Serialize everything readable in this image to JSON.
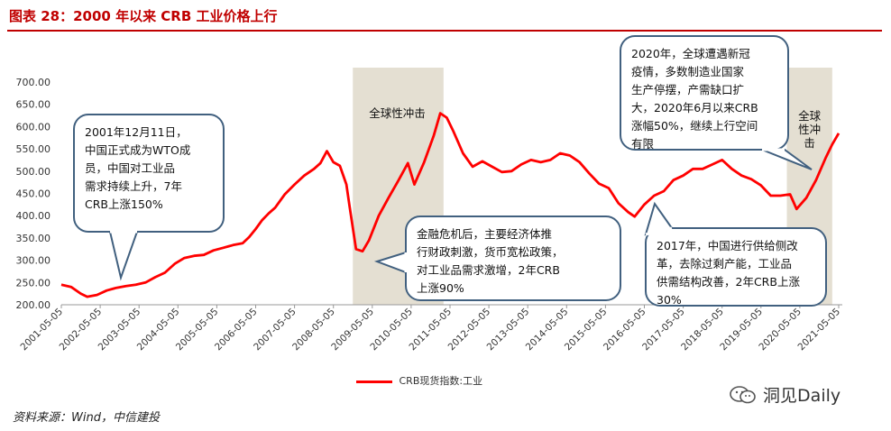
{
  "page": {
    "title": "图表 28：2000 年以来 CRB 工业价格上行",
    "source": "资料来源：Wind，中信建投",
    "brand": "洞见Daily"
  },
  "colors": {
    "title": "#c00000",
    "line": "#ff0000",
    "shade": "#e4dfd2",
    "bubble_border": "#41607f"
  },
  "chart_data": {
    "type": "line",
    "title": "",
    "xlabel": "",
    "ylabel": "",
    "ylim": [
      200,
      700
    ],
    "yticks": [
      "200.00",
      "250.00",
      "300.00",
      "350.00",
      "400.00",
      "450.00",
      "500.00",
      "550.00",
      "600.00",
      "650.00",
      "700.00"
    ],
    "xticks": [
      "2001-05-05",
      "2002-05-05",
      "2003-05-05",
      "2004-05-05",
      "2005-05-05",
      "2006-05-05",
      "2007-05-05",
      "2008-05-05",
      "2009-05-05",
      "2010-05-05",
      "2011-05-05",
      "2012-05-05",
      "2013-05-05",
      "2014-05-05",
      "2015-05-05",
      "2016-05-05",
      "2017-05-05",
      "2018-05-05",
      "2019-05-05",
      "2020-05-05",
      "2021-05-05"
    ],
    "grid": false,
    "legend": "bottom",
    "series": [
      {
        "name": "CRB现货指数:工业",
        "color": "#ff0000",
        "points": [
          [
            "2001-05",
            245
          ],
          [
            "2001-08",
            240
          ],
          [
            "2001-11",
            225
          ],
          [
            "2002-01",
            218
          ],
          [
            "2002-04",
            222
          ],
          [
            "2002-07",
            232
          ],
          [
            "2002-10",
            238
          ],
          [
            "2003-01",
            242
          ],
          [
            "2003-04",
            245
          ],
          [
            "2003-07",
            250
          ],
          [
            "2003-10",
            262
          ],
          [
            "2004-01",
            272
          ],
          [
            "2004-04",
            292
          ],
          [
            "2004-07",
            305
          ],
          [
            "2004-10",
            310
          ],
          [
            "2005-01",
            312
          ],
          [
            "2005-04",
            322
          ],
          [
            "2005-07",
            328
          ],
          [
            "2005-10",
            334
          ],
          [
            "2006-01",
            338
          ],
          [
            "2006-03",
            352
          ],
          [
            "2006-05",
            370
          ],
          [
            "2006-07",
            390
          ],
          [
            "2006-09",
            405
          ],
          [
            "2006-11",
            418
          ],
          [
            "2007-02",
            448
          ],
          [
            "2007-05",
            470
          ],
          [
            "2007-08",
            490
          ],
          [
            "2007-11",
            505
          ],
          [
            "2008-01",
            518
          ],
          [
            "2008-03",
            545
          ],
          [
            "2008-05",
            520
          ],
          [
            "2008-07",
            512
          ],
          [
            "2008-09",
            470
          ],
          [
            "2008-10",
            420
          ],
          [
            "2008-12",
            325
          ],
          [
            "2009-02",
            320
          ],
          [
            "2009-04",
            345
          ],
          [
            "2009-07",
            400
          ],
          [
            "2009-10",
            440
          ],
          [
            "2010-01",
            478
          ],
          [
            "2010-04",
            518
          ],
          [
            "2010-06",
            470
          ],
          [
            "2010-09",
            520
          ],
          [
            "2010-12",
            580
          ],
          [
            "2011-02",
            630
          ],
          [
            "2011-04",
            620
          ],
          [
            "2011-06",
            590
          ],
          [
            "2011-09",
            540
          ],
          [
            "2011-12",
            510
          ],
          [
            "2012-03",
            522
          ],
          [
            "2012-06",
            510
          ],
          [
            "2012-09",
            498
          ],
          [
            "2012-12",
            500
          ],
          [
            "2013-03",
            515
          ],
          [
            "2013-06",
            525
          ],
          [
            "2013-09",
            520
          ],
          [
            "2013-12",
            525
          ],
          [
            "2014-03",
            540
          ],
          [
            "2014-06",
            535
          ],
          [
            "2014-09",
            520
          ],
          [
            "2014-12",
            495
          ],
          [
            "2015-03",
            472
          ],
          [
            "2015-06",
            462
          ],
          [
            "2015-09",
            428
          ],
          [
            "2015-12",
            408
          ],
          [
            "2016-02",
            398
          ],
          [
            "2016-05",
            425
          ],
          [
            "2016-08",
            445
          ],
          [
            "2016-11",
            455
          ],
          [
            "2017-02",
            480
          ],
          [
            "2017-05",
            490
          ],
          [
            "2017-08",
            505
          ],
          [
            "2017-11",
            505
          ],
          [
            "2018-02",
            515
          ],
          [
            "2018-05",
            525
          ],
          [
            "2018-08",
            505
          ],
          [
            "2018-11",
            490
          ],
          [
            "2019-02",
            482
          ],
          [
            "2019-05",
            468
          ],
          [
            "2019-08",
            445
          ],
          [
            "2019-11",
            445
          ],
          [
            "2020-02",
            448
          ],
          [
            "2020-04",
            415
          ],
          [
            "2020-07",
            440
          ],
          [
            "2020-10",
            480
          ],
          [
            "2021-01",
            530
          ],
          [
            "2021-03",
            560
          ],
          [
            "2021-05",
            585
          ]
        ]
      }
    ],
    "shaded_periods": [
      {
        "label": "全球性冲击",
        "start": "2008-11",
        "end": "2011-03"
      },
      {
        "label": "全球\n性冲\n击",
        "start": "2020-01",
        "end": "2021-03"
      }
    ],
    "annotations": [
      {
        "text": "2001年12月11日，\n中国正式成为WTO成\n员，中国对工业品\n需求持续上升，7年\nCRB上涨150%"
      },
      {
        "text": "金融危机后，主要经济体推\n行财政刺激，货币宽松政策，\n对工业品需求激增，2年CRB\n上涨90%"
      },
      {
        "text": "2020年，全球遭遇新冠\n疫情，多数制造业国家\n生产停摆，产需缺口扩\n大，2020年6月以来CRB\n涨幅50%，继续上行空间\n有限"
      },
      {
        "text": "2017年，中国进行供给侧改\n革，去除过剩产能，工业品\n供需结构改善，2年CRB上涨\n30%"
      }
    ]
  }
}
